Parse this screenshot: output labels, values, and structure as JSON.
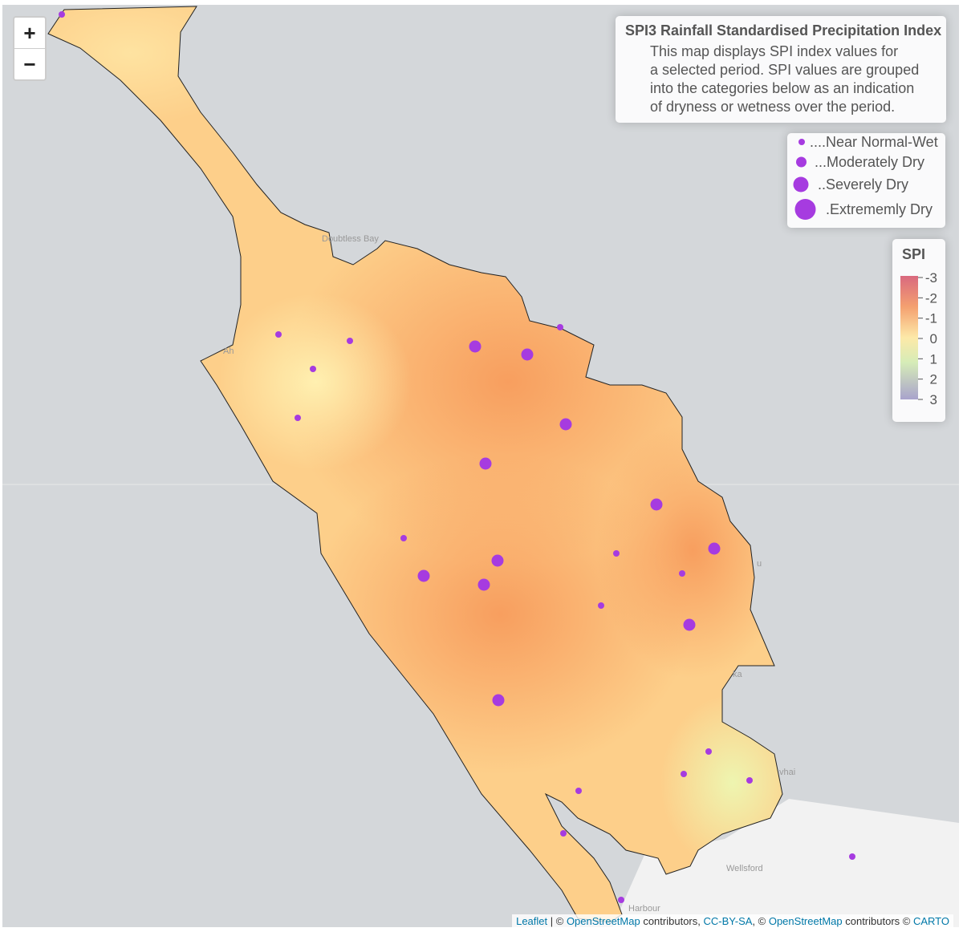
{
  "zoom": {
    "in": "+",
    "out": "−"
  },
  "info": {
    "title": "SPI3 Rainfall Standardised Precipitation Index",
    "lines": [
      "This map displays SPI index values for",
      "a selected period. SPI values are grouped",
      "into the categories below as an indication",
      "of dryness or wetness over the period."
    ]
  },
  "legend": {
    "items": [
      "....Near Normal-Wet",
      "...Moderately Dry",
      "..Severely Dry",
      ".Extrememly Dry"
    ]
  },
  "colorbar": {
    "title": "SPI",
    "ticks": [
      -3,
      -2,
      -1,
      0,
      1,
      2,
      3
    ]
  },
  "places": [
    "Doubtless Bay",
    "Wellsford",
    "Harbour",
    "vhai",
    "ka",
    "u",
    "Ah"
  ],
  "attribution": {
    "leaflet": "Leaflet",
    "sep1": " | © ",
    "osm1": "OpenStreetMap",
    "text1": " contributors, ",
    "cc": "CC-BY-SA",
    "text2": ", © ",
    "osm2": "OpenStreetMap",
    "text3": " contributors © ",
    "carto": "CARTO"
  }
}
